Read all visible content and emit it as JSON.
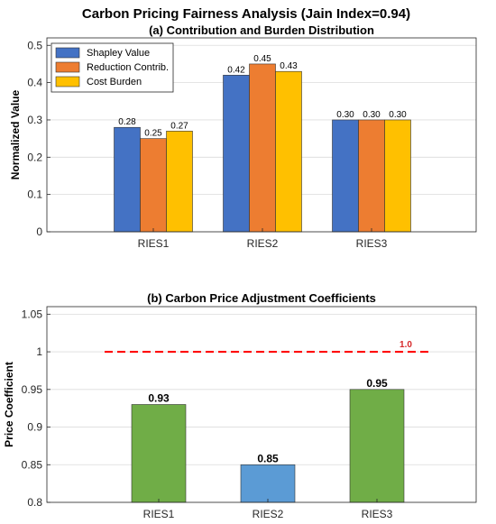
{
  "page": {
    "title": "Carbon Pricing Fairness Analysis (Jain Index=0.94)"
  },
  "chart_data": [
    {
      "type": "bar",
      "title": "(a) Contribution and Burden Distribution",
      "xlabel": "",
      "ylabel": "Normalized Value",
      "categories": [
        "RIES1",
        "RIES2",
        "RIES3"
      ],
      "ylim": [
        0,
        0.52
      ],
      "yticks": [
        0,
        0.1,
        0.2,
        0.3,
        0.4,
        0.5
      ],
      "ytick_labels": [
        "0",
        "0.1",
        "0.2",
        "0.3",
        "0.4",
        "0.5"
      ],
      "grid": true,
      "legend": "top-left",
      "series": [
        {
          "name": "Shapley Value",
          "color": "#4472C4",
          "values": [
            0.28,
            0.42,
            0.3
          ],
          "labels": [
            "0.28",
            "0.42",
            "0.30"
          ]
        },
        {
          "name": "Reduction Contrib.",
          "color": "#ED7D31",
          "values": [
            0.25,
            0.45,
            0.3
          ],
          "labels": [
            "0.25",
            "0.45",
            "0.30"
          ]
        },
        {
          "name": "Cost Burden",
          "color": "#FFC000",
          "values": [
            0.27,
            0.43,
            0.3
          ],
          "labels": [
            "0.27",
            "0.43",
            "0.30"
          ]
        }
      ]
    },
    {
      "type": "bar",
      "title": "(b) Carbon Price Adjustment Coefficients",
      "xlabel": "",
      "ylabel": "Price Coefficient",
      "categories": [
        "RIES1",
        "RIES2",
        "RIES3"
      ],
      "values": [
        0.93,
        0.85,
        0.95
      ],
      "labels": [
        "0.93",
        "0.85",
        "0.95"
      ],
      "colors": [
        "#70AD47",
        "#5B9BD5",
        "#70AD47"
      ],
      "ylim": [
        0.8,
        1.06
      ],
      "yticks": [
        0.8,
        0.85,
        0.9,
        0.95,
        1.0,
        1.05
      ],
      "ytick_labels": [
        "0.8",
        "0.85",
        "0.9",
        "0.95",
        "1",
        "1.05"
      ],
      "grid": true,
      "reference_line": {
        "value": 1.0,
        "label": "1.0",
        "color": "#FF0000"
      }
    }
  ]
}
